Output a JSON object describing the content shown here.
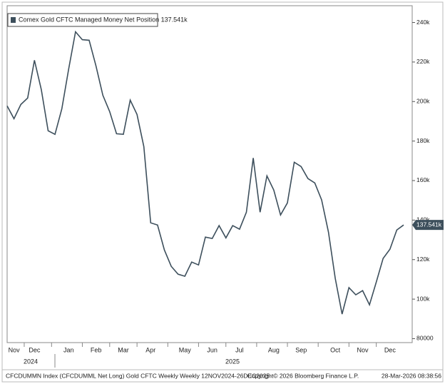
{
  "chart_data": {
    "type": "line",
    "series": [
      {
        "name": "Comex Gold CFTC Managed Money Net Position 137.541k",
        "color": "#3d4f5c",
        "values": [
          197800,
          191300,
          198500,
          201800,
          220900,
          206100,
          185200,
          183400,
          196300,
          216500,
          235300,
          231300,
          231000,
          218000,
          203200,
          194900,
          183700,
          183400,
          200700,
          193500,
          177200,
          138600,
          137500,
          124900,
          116600,
          112600,
          111600,
          118800,
          117300,
          131400,
          130700,
          137200,
          131000,
          137200,
          135400,
          144000,
          171400,
          144000,
          162400,
          155200,
          142600,
          148700,
          169300,
          167100,
          161000,
          158800,
          150200,
          133900,
          110500,
          92400,
          105800,
          102200,
          104300,
          97100,
          108700,
          120600,
          125300,
          135000,
          137541
        ]
      }
    ],
    "last_value_label": "137.541k",
    "categories": [
      null,
      "Nov",
      null,
      null,
      "Dec",
      null,
      null,
      null,
      null,
      "Jan",
      null,
      null,
      null,
      "Feb",
      null,
      null,
      null,
      "Mar",
      null,
      null,
      null,
      "Apr",
      null,
      null,
      null,
      null,
      "May",
      null,
      null,
      null,
      "Jun",
      null,
      null,
      null,
      "Jul",
      null,
      null,
      null,
      null,
      "Aug",
      null,
      null,
      null,
      "Sep",
      null,
      null,
      null,
      null,
      "Oct",
      null,
      null,
      null,
      "Nov",
      null,
      null,
      null,
      "Dec",
      null,
      null
    ],
    "year_labels": [
      "2024",
      "2025"
    ],
    "ylim": [
      78000,
      248500
    ],
    "yticks": [
      {
        "value": 80000,
        "label": "80000"
      },
      {
        "value": 100000,
        "label": "100k"
      },
      {
        "value": 120000,
        "label": "120k"
      },
      {
        "value": 140000,
        "label": "140k"
      },
      {
        "value": 160000,
        "label": "160k"
      },
      {
        "value": 180000,
        "label": "180k"
      },
      {
        "value": 200000,
        "label": "200k"
      },
      {
        "value": 220000,
        "label": "220k"
      },
      {
        "value": 240000,
        "label": "240k"
      }
    ],
    "footer": {
      "left": "CFCDUMMN Index (CFCDUMML Net Long) Gold CFTC Weekly Weekly 12NOV2024-26DEC2025",
      "center": "Copyright© 2026 Bloomberg Finance L.P.",
      "right": "28-Mar-2026 08:38:56"
    }
  }
}
